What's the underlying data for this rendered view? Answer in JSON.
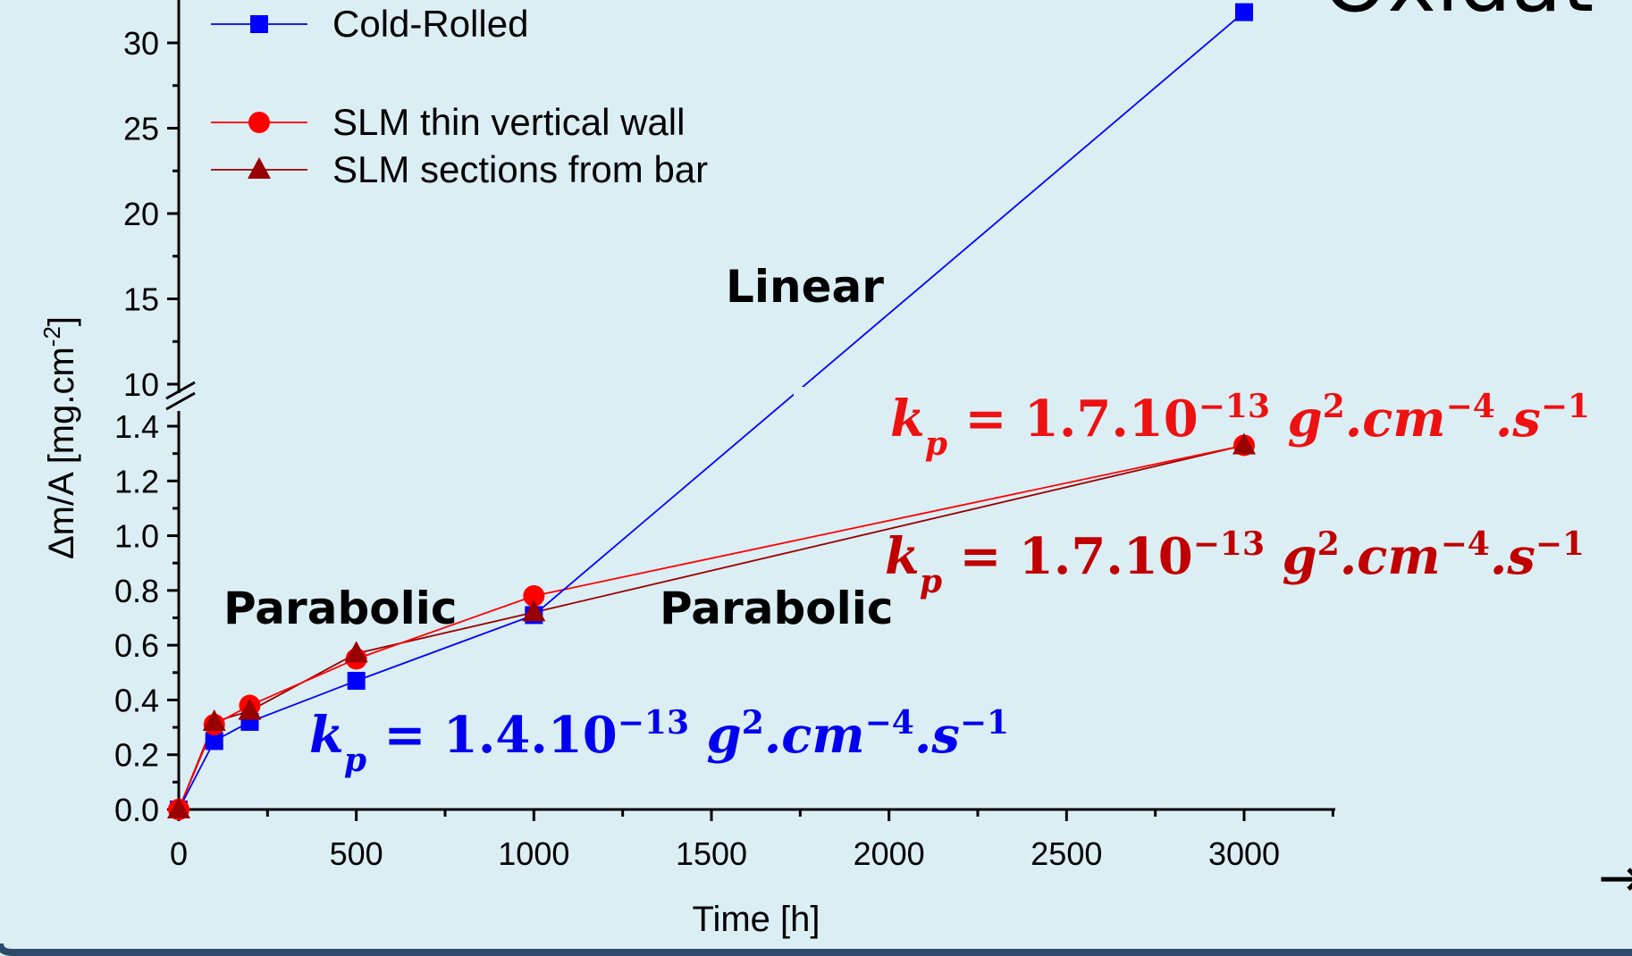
{
  "chart_data": {
    "type": "line",
    "xlabel": "Time [h]",
    "ylabel": "Δm/A [mg.cm",
    "ylabel_sup": "-2",
    "ylabel_end": "]",
    "xlim": [
      0,
      3250
    ],
    "x_ticks": [
      "0",
      "500",
      "1000",
      "1500",
      "2000",
      "2500",
      "3000"
    ],
    "y_axis_broken": true,
    "ylim_lower": [
      0,
      1.45
    ],
    "ylim_upper": [
      10,
      32
    ],
    "y_ticks_lower": [
      "0.0",
      "0.2",
      "0.4",
      "0.6",
      "0.8",
      "1.0",
      "1.2",
      "1.4"
    ],
    "y_ticks_upper": [
      "10",
      "15",
      "20",
      "25",
      "30"
    ],
    "legend_placement": "top-left",
    "series": [
      {
        "name": "Cold-Rolled",
        "color": "#0000ff",
        "marker": "square",
        "x": [
          0,
          100,
          200,
          500,
          1000,
          3000
        ],
        "y": [
          0.0,
          0.25,
          0.32,
          0.47,
          0.71,
          31.8
        ]
      },
      {
        "name": "SLM thin vertical wall",
        "color": "#ff0000",
        "marker": "circle",
        "x": [
          0,
          100,
          200,
          500,
          1000,
          3000
        ],
        "y": [
          0.0,
          0.31,
          0.38,
          0.55,
          0.78,
          1.33
        ]
      },
      {
        "name": "SLM sections from bar",
        "color": "#990000",
        "marker": "triangle",
        "x": [
          0,
          100,
          200,
          500,
          1000,
          3000
        ],
        "y": [
          0.0,
          0.32,
          0.36,
          0.57,
          0.72,
          1.33
        ]
      }
    ],
    "annotations": [
      {
        "id": "linear",
        "text": "Linear"
      },
      {
        "id": "parabolic_left",
        "text": "Parabolic"
      },
      {
        "id": "parabolic_right",
        "text": "Parabolic"
      }
    ],
    "rate_constants": [
      {
        "id": "kp_blue",
        "color": "#0000ee",
        "k": "k",
        "sub": "p",
        "eq": " = ",
        "value": "1.4.10",
        "exp": "−13",
        "g": " g",
        "g_exp": "2",
        "cm": ".cm",
        "cm_exp": "−4",
        "s": ".s",
        "s_exp": "−1"
      },
      {
        "id": "kp_red",
        "color": "#ee1111",
        "k": "k",
        "sub": "p",
        "eq": " = ",
        "value": "1.7.10",
        "exp": "−13",
        "g": " g",
        "g_exp": "2",
        "cm": ".cm",
        "cm_exp": "−4",
        "s": ".s",
        "s_exp": "−1"
      },
      {
        "id": "kp_darkred",
        "color": "#c00000",
        "k": "k",
        "sub": "p",
        "eq": " = ",
        "value": "1.7.10",
        "exp": "−13",
        "g": " g",
        "g_exp": "2",
        "cm": ".cm",
        "cm_exp": "−4",
        "s": ".s",
        "s_exp": "−1"
      }
    ]
  },
  "page": {
    "background": "#dbeef4",
    "frame_color": "#2d4a6b",
    "partial_title_text": "Oxidat",
    "corner_glyph": "→"
  }
}
